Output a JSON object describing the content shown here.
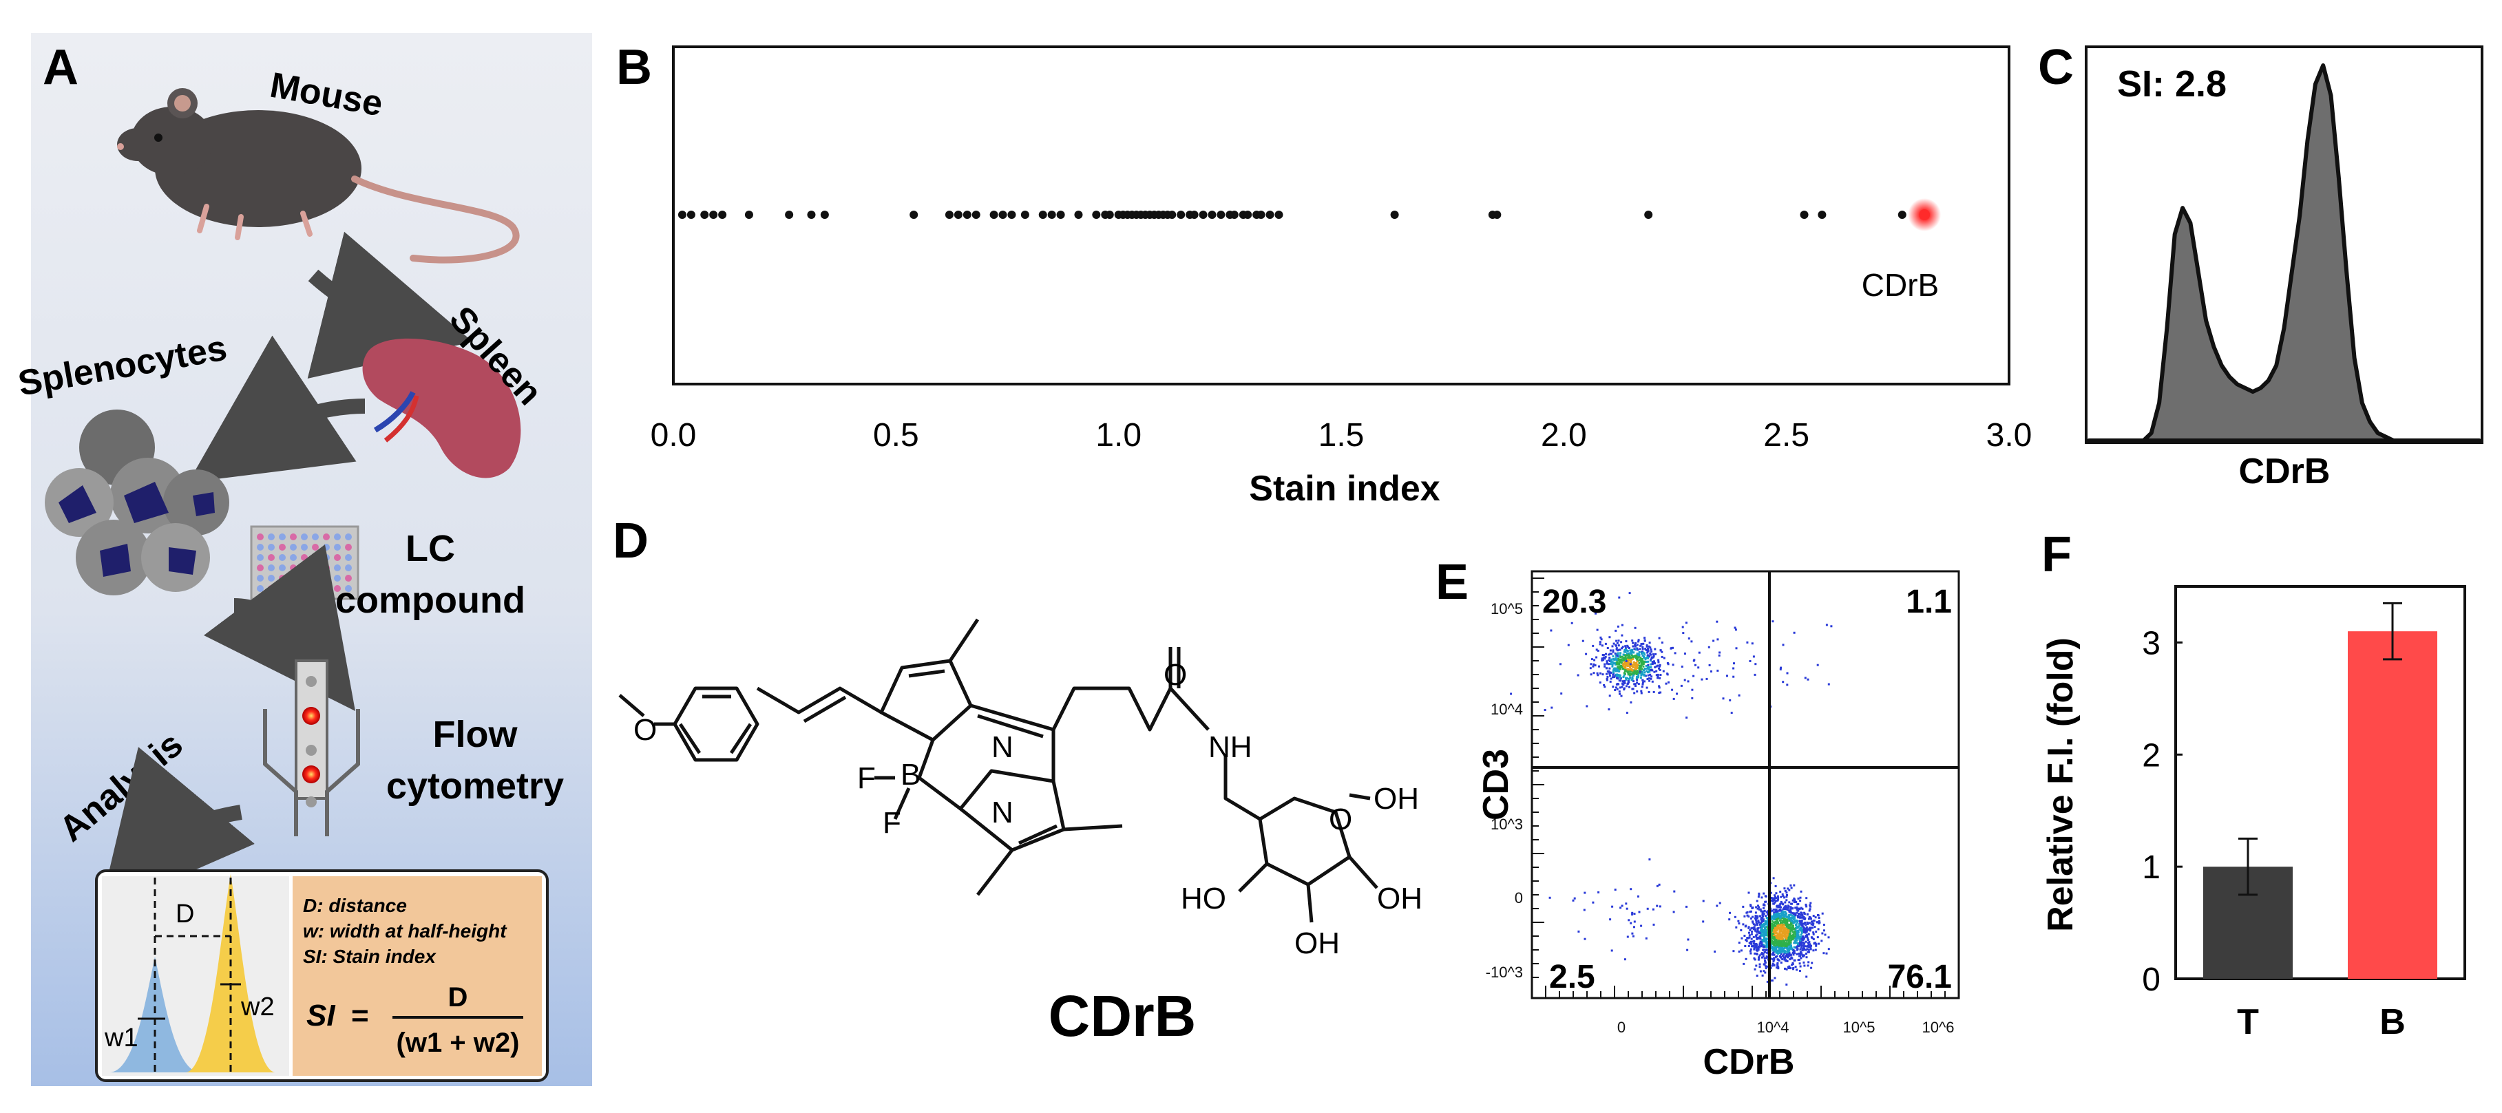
{
  "panel_letters": {
    "a": "A",
    "b": "B",
    "c": "C",
    "d": "D",
    "e": "E",
    "f": "F"
  },
  "panel_a": {
    "mouse_label": "Mouse",
    "spleen_label": "Spleen",
    "splenocytes_label": "Splenocytes",
    "lc_label_line1": "LC",
    "lc_label_line2": "compound",
    "flow_label_line1": "Flow",
    "flow_label_line2": "cytometry",
    "analysis_label": "Analysis",
    "legend_lines": [
      "D: distance",
      "w: width at half-height",
      "SI: Stain index"
    ],
    "formula": {
      "lhs": "SI",
      "eq": "=",
      "numerator": "D",
      "denominator": "(w1 + w2)"
    },
    "inset": {
      "d_label": "D",
      "w1_label": "w1",
      "w2_label": "w2"
    },
    "colors": {
      "background_top": "#e8eaf0",
      "background_bottom": "#a9c0e4",
      "legend_box": "#f2c79a",
      "peak1": "#8fb8e0",
      "peak2": "#f5cd4a"
    }
  },
  "chart_data": [
    {
      "id": "B",
      "type": "scatter",
      "xlabel": "Stain index",
      "ylabel": "",
      "xlim": [
        0,
        3.0
      ],
      "xticks": [
        0.0,
        0.5,
        1.0,
        1.5,
        2.0,
        2.5,
        3.0
      ],
      "xtick_labels": [
        "0.0",
        "0.5",
        "1.0",
        "1.5",
        "2.0",
        "2.5",
        "3.0"
      ],
      "grid": false,
      "x": [
        0.02,
        0.04,
        0.07,
        0.09,
        0.11,
        0.17,
        0.26,
        0.31,
        0.34,
        0.54,
        0.62,
        0.64,
        0.66,
        0.68,
        0.72,
        0.74,
        0.76,
        0.79,
        0.83,
        0.85,
        0.87,
        0.91,
        0.95,
        0.97,
        0.98,
        1.0,
        1.01,
        1.02,
        1.03,
        1.04,
        1.05,
        1.06,
        1.07,
        1.08,
        1.09,
        1.1,
        1.11,
        1.12,
        1.14,
        1.16,
        1.17,
        1.19,
        1.21,
        1.23,
        1.25,
        1.26,
        1.28,
        1.29,
        1.31,
        1.32,
        1.34,
        1.36,
        1.62,
        1.84,
        1.85,
        2.19,
        2.54,
        2.58,
        2.76
      ],
      "highlight": {
        "x": 2.81,
        "label": "CDrB",
        "color": "#ff2a2a"
      },
      "point_color": "#111111"
    },
    {
      "id": "C",
      "type": "area",
      "annotation": "SI: 2.8",
      "xlabel": "CDrB",
      "ylabel": "",
      "x": [
        0,
        0.04,
        0.08,
        0.12,
        0.14,
        0.16,
        0.18,
        0.2,
        0.22,
        0.24,
        0.26,
        0.28,
        0.3,
        0.32,
        0.34,
        0.36,
        0.38,
        0.4,
        0.42,
        0.44,
        0.46,
        0.48,
        0.5,
        0.52,
        0.54,
        0.56,
        0.58,
        0.6,
        0.62,
        0.64,
        0.66,
        0.68,
        0.7,
        0.72,
        0.74,
        0.76,
        0.78,
        0.8,
        0.82,
        0.84,
        0.86,
        0.88,
        0.9,
        0.94,
        1.0
      ],
      "y": [
        0,
        0,
        0,
        0,
        0,
        0.02,
        0.1,
        0.3,
        0.55,
        0.62,
        0.58,
        0.45,
        0.32,
        0.25,
        0.2,
        0.17,
        0.15,
        0.14,
        0.13,
        0.14,
        0.16,
        0.2,
        0.3,
        0.45,
        0.6,
        0.8,
        0.95,
        1.0,
        0.92,
        0.7,
        0.45,
        0.22,
        0.1,
        0.05,
        0.02,
        0.01,
        0,
        0,
        0,
        0,
        0,
        0,
        0,
        0,
        0
      ],
      "color": "#6e6e6e"
    },
    {
      "id": "E",
      "type": "scatter",
      "xlabel": "CDrB",
      "ylabel": "CD3",
      "x_scale": "log",
      "y_scale": "log",
      "x_tick_labels": [
        "0",
        "10^4",
        "10^5",
        "10^6"
      ],
      "y_tick_labels": [
        "-10^3",
        "0",
        "10^3",
        "10^4",
        "10^5"
      ],
      "quadrants": {
        "upper_left": "20.3",
        "upper_right": "1.1",
        "lower_left": "2.5",
        "lower_right": "76.1"
      },
      "populations": [
        {
          "name": "",
          "center_x": 3.4,
          "center_y": 3.9
        },
        {
          "name": "",
          "center_x": 4.6,
          "center_y": 0.3
        }
      ]
    },
    {
      "id": "F",
      "type": "bar",
      "categories": [
        "T",
        "B"
      ],
      "values": [
        1.0,
        3.1
      ],
      "errors": [
        0.25,
        0.25
      ],
      "colors": [
        "#3d3d3d",
        "#ff4a4a"
      ],
      "ylabel": "Relative F.I. (fold)",
      "xlabel": "",
      "ylim": [
        0,
        3.5
      ],
      "yticks": [
        0,
        1,
        2,
        3
      ],
      "ytick_labels": [
        "0",
        "1",
        "2",
        "3"
      ]
    }
  ],
  "panel_d": {
    "compound_name": "CDrB",
    "atom_labels": [
      "N",
      "N",
      "B",
      "F",
      "F",
      "O",
      "NH",
      "O",
      "OH",
      "HO",
      "OH",
      "OH",
      "O"
    ]
  }
}
